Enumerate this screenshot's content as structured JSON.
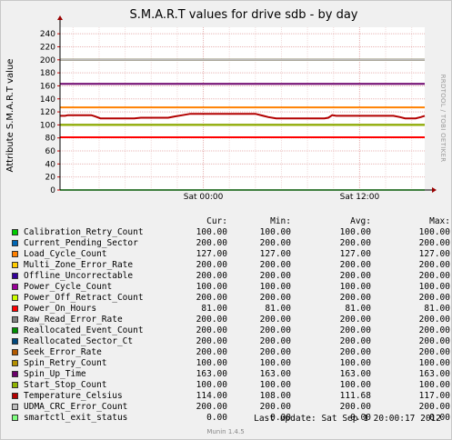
{
  "chart_data": {
    "type": "line",
    "title": "S.M.A.R.T values for drive sdb - by day",
    "ylabel": "Attribute S.M.A.R.T value",
    "xlabel": "",
    "ylim": [
      0,
      250
    ],
    "y_ticks": [
      0,
      20,
      40,
      60,
      80,
      100,
      120,
      140,
      160,
      180,
      200,
      220,
      240
    ],
    "x_range_hours": [
      -11,
      17
    ],
    "x_ticks": [
      {
        "label": "Sat 00:00",
        "hour": 0
      },
      {
        "label": "Sat 12:00",
        "hour": 12
      }
    ],
    "grid": true,
    "watermark": "RRDTOOL / TOBI OETIKER",
    "series": [
      {
        "name": "Calibration_Retry_Count",
        "color": "#00cc00",
        "cur": "100.00",
        "min": "100.00",
        "avg": "100.00",
        "max": "100.00",
        "flat": 100
      },
      {
        "name": "Current_Pending_Sector",
        "color": "#0066b3",
        "cur": "200.00",
        "min": "200.00",
        "avg": "200.00",
        "max": "200.00",
        "flat": 200
      },
      {
        "name": "Load_Cycle_Count",
        "color": "#ff8000",
        "cur": "127.00",
        "min": "127.00",
        "avg": "127.00",
        "max": "127.00",
        "flat": 127
      },
      {
        "name": "Multi_Zone_Error_Rate",
        "color": "#ffcc00",
        "cur": "200.00",
        "min": "200.00",
        "avg": "200.00",
        "max": "200.00",
        "flat": 200
      },
      {
        "name": "Offline_Uncorrectable",
        "color": "#330099",
        "cur": "200.00",
        "min": "200.00",
        "avg": "200.00",
        "max": "200.00",
        "flat": 200
      },
      {
        "name": "Power_Cycle_Count",
        "color": "#990099",
        "cur": "100.00",
        "min": "100.00",
        "avg": "100.00",
        "max": "100.00",
        "flat": 100
      },
      {
        "name": "Power_Off_Retract_Count",
        "color": "#ccff00",
        "cur": "200.00",
        "min": "200.00",
        "avg": "200.00",
        "max": "200.00",
        "flat": 200
      },
      {
        "name": "Power_On_Hours",
        "color": "#ff0000",
        "cur": "81.00",
        "min": "81.00",
        "avg": "81.00",
        "max": "81.00",
        "flat": 81
      },
      {
        "name": "Raw_Read_Error_Rate",
        "color": "#808080",
        "cur": "200.00",
        "min": "200.00",
        "avg": "200.00",
        "max": "200.00",
        "flat": 200
      },
      {
        "name": "Reallocated_Event_Count",
        "color": "#008f00",
        "cur": "200.00",
        "min": "200.00",
        "avg": "200.00",
        "max": "200.00",
        "flat": 200
      },
      {
        "name": "Reallocated_Sector_Ct",
        "color": "#00487d",
        "cur": "200.00",
        "min": "200.00",
        "avg": "200.00",
        "max": "200.00",
        "flat": 200
      },
      {
        "name": "Seek_Error_Rate",
        "color": "#b35a00",
        "cur": "200.00",
        "min": "200.00",
        "avg": "200.00",
        "max": "200.00",
        "flat": 200
      },
      {
        "name": "Spin_Retry_Count",
        "color": "#b38f00",
        "cur": "100.00",
        "min": "100.00",
        "avg": "100.00",
        "max": "100.00",
        "flat": 100
      },
      {
        "name": "Spin_Up_Time",
        "color": "#6b006b",
        "cur": "163.00",
        "min": "163.00",
        "avg": "163.00",
        "max": "163.00",
        "flat": 163
      },
      {
        "name": "Start_Stop_Count",
        "color": "#8fb300",
        "cur": "100.00",
        "min": "100.00",
        "avg": "100.00",
        "max": "100.00",
        "flat": 100
      },
      {
        "name": "Temperature_Celsius",
        "color": "#b30000",
        "cur": "114.00",
        "min": "108.00",
        "avg": "111.68",
        "max": "117.00",
        "points": [
          [
            -11,
            114
          ],
          [
            -10.6,
            114
          ],
          [
            -10.4,
            115
          ],
          [
            -8.6,
            115
          ],
          [
            -8.3,
            113
          ],
          [
            -7.9,
            110
          ],
          [
            -5.3,
            110
          ],
          [
            -4.8,
            111
          ],
          [
            -2.7,
            111
          ],
          [
            -2.2,
            113
          ],
          [
            -1.6,
            115
          ],
          [
            -1.0,
            117
          ],
          [
            4.0,
            117
          ],
          [
            4.6,
            114
          ],
          [
            5.0,
            112
          ],
          [
            5.6,
            110
          ],
          [
            9.3,
            110
          ],
          [
            9.6,
            111
          ],
          [
            9.9,
            115
          ],
          [
            10.2,
            114
          ],
          [
            14.6,
            114
          ],
          [
            15.1,
            112
          ],
          [
            15.5,
            110
          ],
          [
            16.3,
            110
          ],
          [
            16.7,
            112
          ],
          [
            17,
            114
          ]
        ]
      },
      {
        "name": "UDMA_CRC_Error_Count",
        "color": "#bebebe",
        "cur": "200.00",
        "min": "200.00",
        "avg": "200.00",
        "max": "200.00",
        "flat": 200
      },
      {
        "name": "smartctl_exit_status",
        "color": "#80ff80",
        "cur": "0.00",
        "min": "0.00",
        "avg": "0.00",
        "max": "0.00",
        "flat": 0
      }
    ]
  },
  "legend_headers": {
    "cur": "Cur:",
    "min": "Min:",
    "avg": "Avg:",
    "max": "Max:"
  },
  "last_update": "Last update:  Sat Sep  1 20:00:17 2012",
  "footer": "Munin 1.4.5"
}
